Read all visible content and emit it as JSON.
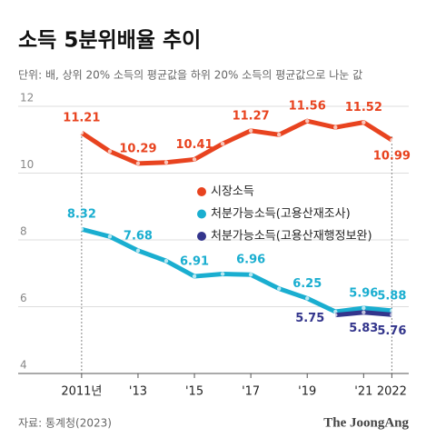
{
  "chart_data": {
    "type": "line",
    "title": "소득 5분위배율 추이",
    "subtitle": "단위: 배, 상위 20% 소득의 평균값을 하위 20% 소득의 평균값으로 나눈 값",
    "source": "자료: 통계청(2023)",
    "brand": "The JoongAng",
    "x": [
      2011,
      2012,
      2013,
      2014,
      2015,
      2016,
      2017,
      2018,
      2019,
      2020,
      2021,
      2022
    ],
    "xlim": [
      2008.75,
      2022.6
    ],
    "xticks": [
      {
        "value": 2011,
        "label": "2011년"
      },
      {
        "value": 2013,
        "label": "'13"
      },
      {
        "value": 2015,
        "label": "'15"
      },
      {
        "value": 2017,
        "label": "'17"
      },
      {
        "value": 2019,
        "label": "'19"
      },
      {
        "value": 2021,
        "label": "'21"
      },
      2022
    ],
    "ylim": [
      4,
      12
    ],
    "yticks": [
      4,
      6,
      8,
      10,
      12
    ],
    "grid": true,
    "series": [
      {
        "name": "시장소득",
        "color": "#e8431f",
        "values": [
          11.21,
          10.65,
          10.29,
          10.32,
          10.41,
          10.88,
          11.27,
          11.15,
          11.56,
          11.37,
          11.52,
          10.99
        ],
        "value_labels": [
          "11.21",
          null,
          "10.29",
          null,
          "10.41",
          null,
          "11.27",
          null,
          "11.56",
          null,
          "11.52",
          "10.99"
        ]
      },
      {
        "name": "처분가능소득(고용산재조사)",
        "color": "#1aaed0",
        "values": [
          8.32,
          8.1,
          7.68,
          7.37,
          6.91,
          6.98,
          6.96,
          6.54,
          6.25,
          5.85,
          5.96,
          5.88
        ],
        "value_labels": [
          "8.32",
          null,
          "7.68",
          null,
          "6.91",
          null,
          "6.96",
          null,
          "6.25",
          null,
          "5.96",
          "5.88"
        ]
      },
      {
        "name": "처분가능소득(고용산재행정보완)",
        "color": "#33358c",
        "values": [
          null,
          null,
          null,
          null,
          null,
          null,
          null,
          null,
          null,
          5.75,
          5.83,
          5.76
        ],
        "value_labels": [
          null,
          null,
          null,
          null,
          null,
          null,
          null,
          null,
          null,
          "5.75",
          "5.83",
          "5.76"
        ]
      }
    ]
  }
}
